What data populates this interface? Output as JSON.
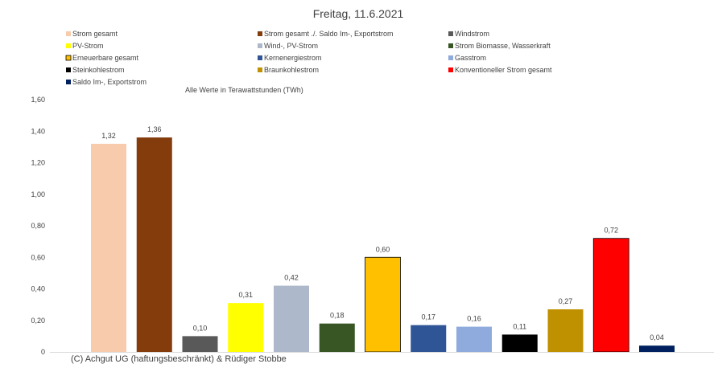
{
  "chart_data": {
    "type": "bar",
    "title": "Freitag, 11.6.2021",
    "note": "Alle Werte in Terawattstunden (TWh)",
    "credit": "(C) Achgut UG (haftungsbeschränkt) & Rüdiger Stobbe",
    "ylim": [
      0,
      1.6
    ],
    "yticks": [
      "0",
      "0,20",
      "0,40",
      "0,60",
      "0,80",
      "1,00",
      "1,20",
      "1,40",
      "1,60"
    ],
    "grid": false,
    "legend_position": "top",
    "categories": [
      "Strom gesamt",
      "Strom gesamt ./. Saldo Im-, Exportstrom",
      "Windstrom",
      "PV-Strom",
      "Wind-, PV-Strom",
      "Strom Biomasse, Wasserkraft",
      "Erneuerbare gesamt",
      "Kernenergiestrom",
      "Gasstrom",
      "Steinkohlestrom",
      "Braunkohlestrom",
      "Konventioneller Strom gesamt",
      "Saldo Im-, Exportstrom"
    ],
    "values": [
      1.32,
      1.36,
      0.1,
      0.31,
      0.42,
      0.18,
      0.6,
      0.17,
      0.16,
      0.11,
      0.27,
      0.72,
      0.04
    ],
    "data_labels": [
      "1,32",
      "1,36",
      "0,10",
      "0,31",
      "0,42",
      "0,18",
      "0,60",
      "0,17",
      "0,16",
      "0,11",
      "0,27",
      "0,72",
      "0,04"
    ],
    "colors": [
      "#F8CBAD",
      "#843C0C",
      "#595959",
      "#FFFF00",
      "#ADB9CA",
      "#375623",
      "#FFC000",
      "#2F5597",
      "#8FAADC",
      "#000000",
      "#BF9000",
      "#FF0000",
      "#002060"
    ]
  }
}
